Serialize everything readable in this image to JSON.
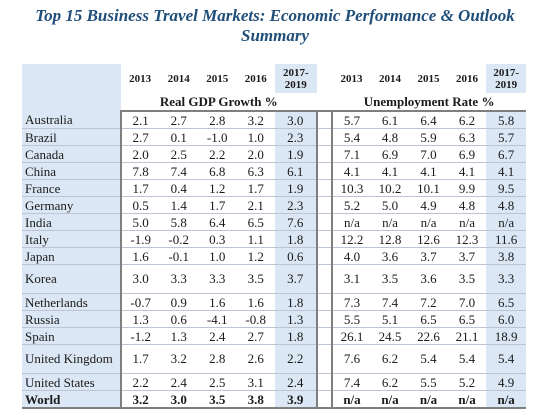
{
  "title": "Top 15 Business Travel Markets: Economic Performance & Outlook Summary",
  "years": [
    "2013",
    "2014",
    "2015",
    "2016",
    "2017-2019"
  ],
  "section_gdp": "Real GDP Growth %",
  "section_unemp": "Unemployment Rate %",
  "rows": [
    {
      "country": "Australia",
      "gdp": [
        "2.1",
        "2.7",
        "2.8",
        "3.2",
        "3.0"
      ],
      "unemp": [
        "5.7",
        "6.1",
        "6.4",
        "6.2",
        "5.8"
      ]
    },
    {
      "country": "Brazil",
      "gdp": [
        "2.7",
        "0.1",
        "-1.0",
        "1.0",
        "2.3"
      ],
      "unemp": [
        "5.4",
        "4.8",
        "5.9",
        "6.3",
        "5.7"
      ]
    },
    {
      "country": "Canada",
      "gdp": [
        "2.0",
        "2.5",
        "2.2",
        "2.0",
        "1.9"
      ],
      "unemp": [
        "7.1",
        "6.9",
        "7.0",
        "6.9",
        "6.7"
      ]
    },
    {
      "country": "China",
      "gdp": [
        "7.8",
        "7.4",
        "6.8",
        "6.3",
        "6.1"
      ],
      "unemp": [
        "4.1",
        "4.1",
        "4.1",
        "4.1",
        "4.1"
      ]
    },
    {
      "country": "France",
      "gdp": [
        "1.7",
        "0.4",
        "1.2",
        "1.7",
        "1.9"
      ],
      "unemp": [
        "10.3",
        "10.2",
        "10.1",
        "9.9",
        "9.5"
      ]
    },
    {
      "country": "Germany",
      "gdp": [
        "0.5",
        "1.4",
        "1.7",
        "2.1",
        "2.3"
      ],
      "unemp": [
        "5.2",
        "5.0",
        "4.9",
        "4.8",
        "4.8"
      ]
    },
    {
      "country": "India",
      "gdp": [
        "5.0",
        "5.8",
        "6.4",
        "6.5",
        "7.6"
      ],
      "unemp": [
        "n/a",
        "n/a",
        "n/a",
        "n/a",
        "n/a"
      ]
    },
    {
      "country": "Italy",
      "gdp": [
        "-1.9",
        "-0.2",
        "0.3",
        "1.1",
        "1.8"
      ],
      "unemp": [
        "12.2",
        "12.8",
        "12.6",
        "12.3",
        "11.6"
      ]
    },
    {
      "country": "Japan",
      "gdp": [
        "1.6",
        "-0.1",
        "1.0",
        "1.2",
        "0.6"
      ],
      "unemp": [
        "4.0",
        "3.6",
        "3.7",
        "3.7",
        "3.8"
      ]
    },
    {
      "country": "Korea",
      "gdp": [
        "3.0",
        "3.3",
        "3.3",
        "3.5",
        "3.7"
      ],
      "unemp": [
        "3.1",
        "3.5",
        "3.6",
        "3.5",
        "3.3"
      ],
      "tall": true
    },
    {
      "country": "Netherlands",
      "gdp": [
        "-0.7",
        "0.9",
        "1.6",
        "1.6",
        "1.8"
      ],
      "unemp": [
        "7.3",
        "7.4",
        "7.2",
        "7.0",
        "6.5"
      ]
    },
    {
      "country": "Russia",
      "gdp": [
        "1.3",
        "0.6",
        "-4.1",
        "-0.8",
        "1.3"
      ],
      "unemp": [
        "5.5",
        "5.1",
        "6.5",
        "6.5",
        "6.0"
      ]
    },
    {
      "country": "Spain",
      "gdp": [
        "-1.2",
        "1.3",
        "2.4",
        "2.7",
        "1.8"
      ],
      "unemp": [
        "26.1",
        "24.5",
        "22.6",
        "21.1",
        "18.9"
      ]
    },
    {
      "country": "United Kingdom",
      "gdp": [
        "1.7",
        "3.2",
        "2.8",
        "2.6",
        "2.2"
      ],
      "unemp": [
        "7.6",
        "6.2",
        "5.4",
        "5.4",
        "5.4"
      ],
      "tall": true
    },
    {
      "country": "United States",
      "gdp": [
        "2.2",
        "2.4",
        "2.5",
        "3.1",
        "2.4"
      ],
      "unemp": [
        "7.4",
        "6.2",
        "5.5",
        "5.2",
        "4.9"
      ]
    },
    {
      "country": "World",
      "gdp": [
        "3.2",
        "3.0",
        "3.5",
        "3.8",
        "3.9"
      ],
      "unemp": [
        "n/a",
        "n/a",
        "n/a",
        "n/a",
        "n/a"
      ],
      "world": true
    }
  ],
  "colors": {
    "title": "#1f4e79",
    "shade": "#dbe7f4",
    "rule": "#7f7f7f"
  }
}
